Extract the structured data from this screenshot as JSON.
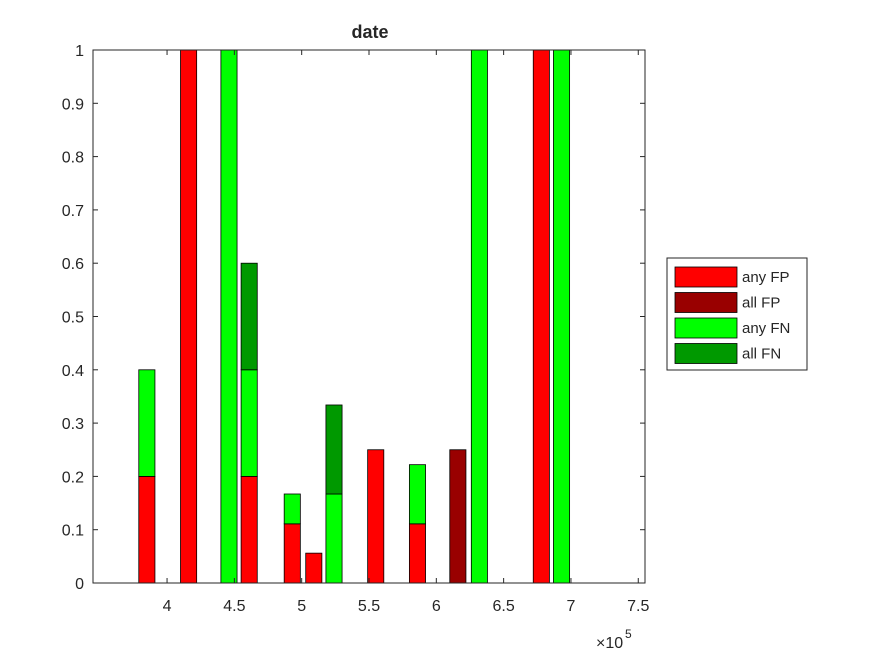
{
  "chart_data": {
    "type": "bar",
    "stacked": true,
    "title": "date",
    "xlabel": "",
    "ylabel": "",
    "x_exponent_label": "×10",
    "x_exponent_power": "5",
    "xlim": [
      3.45,
      7.55
    ],
    "ylim": [
      0,
      1
    ],
    "grid": false,
    "legend_position": "right",
    "xticks": [
      4,
      4.5,
      5,
      5.5,
      6,
      6.5,
      7,
      7.5
    ],
    "xtick_labels": [
      "4",
      "4.5",
      "5",
      "5.5",
      "6",
      "6.5",
      "7",
      "7.5"
    ],
    "yticks": [
      0,
      0.1,
      0.2,
      0.3,
      0.4,
      0.5,
      0.6,
      0.7,
      0.8,
      0.9,
      1
    ],
    "ytick_labels": [
      "0",
      "0.1",
      "0.2",
      "0.3",
      "0.4",
      "0.5",
      "0.6",
      "0.7",
      "0.8",
      "0.9",
      "1"
    ],
    "bar_width": 0.12,
    "legend": [
      {
        "name": "any FP",
        "color": "#ff0000"
      },
      {
        "name": "all FP",
        "color": "#990000"
      },
      {
        "name": "any FN",
        "color": "#00ff00"
      },
      {
        "name": "all FN",
        "color": "#009900"
      }
    ],
    "bars": [
      {
        "x": 3.85,
        "segments": [
          {
            "series": "any FP",
            "value": 0.2
          },
          {
            "series": "any FN",
            "value": 0.2
          }
        ]
      },
      {
        "x": 4.16,
        "segments": [
          {
            "series": "any FP",
            "value": 1.0
          }
        ]
      },
      {
        "x": 4.46,
        "segments": [
          {
            "series": "any FN",
            "value": 1.0
          }
        ]
      },
      {
        "x": 4.61,
        "segments": [
          {
            "series": "any FP",
            "value": 0.2
          },
          {
            "series": "any FN",
            "value": 0.2
          },
          {
            "series": "all FN",
            "value": 0.2
          }
        ]
      },
      {
        "x": 4.93,
        "segments": [
          {
            "series": "any FP",
            "value": 0.111
          },
          {
            "series": "any FN",
            "value": 0.056
          }
        ]
      },
      {
        "x": 5.09,
        "segments": [
          {
            "series": "any FP",
            "value": 0.056
          }
        ]
      },
      {
        "x": 5.24,
        "segments": [
          {
            "series": "any FN",
            "value": 0.167
          },
          {
            "series": "all FN",
            "value": 0.167
          }
        ]
      },
      {
        "x": 5.55,
        "segments": [
          {
            "series": "any FP",
            "value": 0.25
          }
        ]
      },
      {
        "x": 5.86,
        "segments": [
          {
            "series": "any FP",
            "value": 0.111
          },
          {
            "series": "any FN",
            "value": 0.111
          }
        ]
      },
      {
        "x": 6.16,
        "segments": [
          {
            "series": "all FP",
            "value": 0.25
          }
        ]
      },
      {
        "x": 6.32,
        "segments": [
          {
            "series": "any FN",
            "value": 1.0
          }
        ]
      },
      {
        "x": 6.78,
        "segments": [
          {
            "series": "any FP",
            "value": 1.0
          }
        ]
      },
      {
        "x": 6.93,
        "segments": [
          {
            "series": "any FN",
            "value": 1.0
          }
        ]
      }
    ]
  }
}
